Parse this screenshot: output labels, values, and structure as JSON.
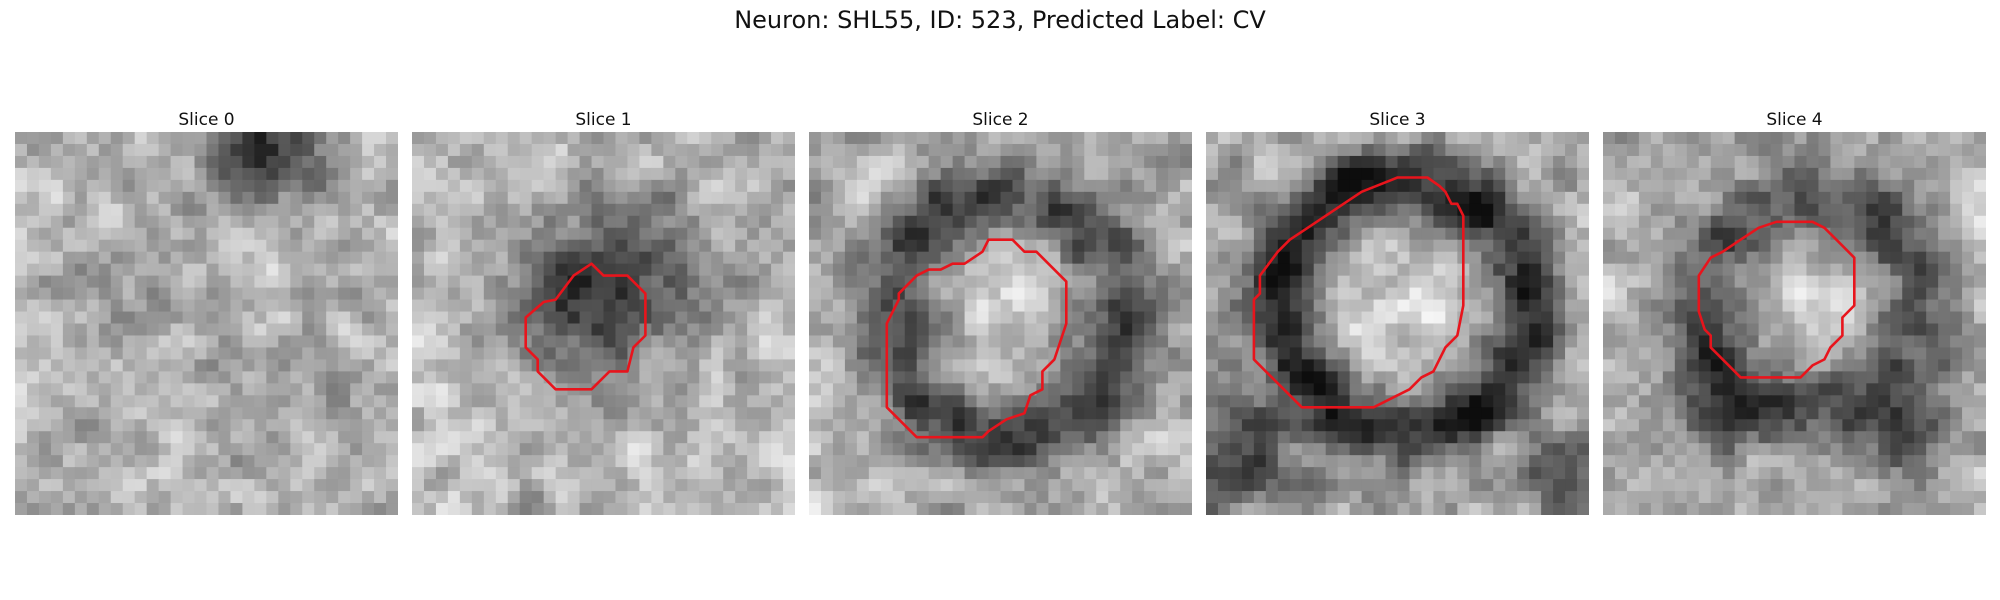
{
  "figure": {
    "title": "Neuron: SHL55, ID: 523, Predicted Label: CV"
  },
  "contour_color": "#e8141c",
  "slices": [
    {
      "label": "Slice 0",
      "has_contour": false
    },
    {
      "label": "Slice 1",
      "has_contour": true
    },
    {
      "label": "Slice 2",
      "has_contour": true
    },
    {
      "label": "Slice 3",
      "has_contour": true
    },
    {
      "label": "Slice 4",
      "has_contour": true
    }
  ]
}
